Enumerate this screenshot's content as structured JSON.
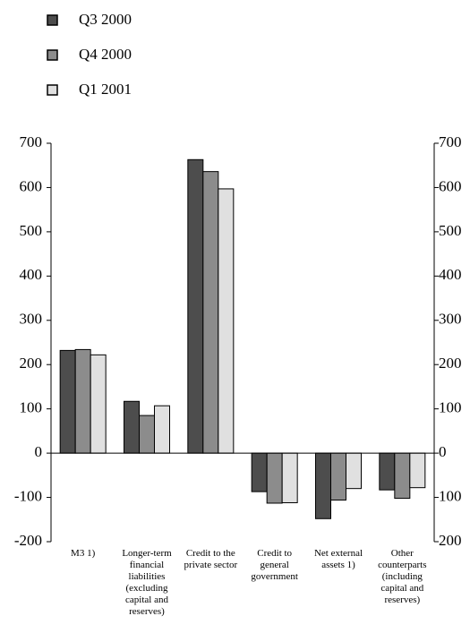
{
  "chart_data": {
    "type": "bar",
    "categories": [
      "M3 1)",
      "Longer-term financial liabilities (excluding capital and reserves)",
      "Credit to the private sector",
      "Credit to general government",
      "Net external assets 1)",
      "Other counterparts (including capital and reserves)"
    ],
    "series": [
      {
        "name": "Q3  2000",
        "color": "#4d4d4d",
        "values": [
          232,
          117,
          663,
          -87,
          -148,
          -83
        ]
      },
      {
        "name": "Q4  2000",
        "color": "#8c8c8c",
        "values": [
          234,
          85,
          636,
          -113,
          -106,
          -102
        ]
      },
      {
        "name": "Q1  2001",
        "color": "#e0e0e0",
        "values": [
          222,
          107,
          597,
          -112,
          -80,
          -78
        ]
      }
    ],
    "ylim": [
      -200,
      700
    ],
    "yticks": [
      -200,
      -100,
      0,
      100,
      200,
      300,
      400,
      500,
      600,
      700
    ],
    "y2lim": [
      -200,
      700
    ],
    "y2ticks": [
      {
        "value": -200,
        "label": "200"
      },
      {
        "value": -100,
        "label": "100"
      },
      0,
      100,
      200,
      300,
      400,
      500,
      600,
      700
    ],
    "grid": false
  }
}
